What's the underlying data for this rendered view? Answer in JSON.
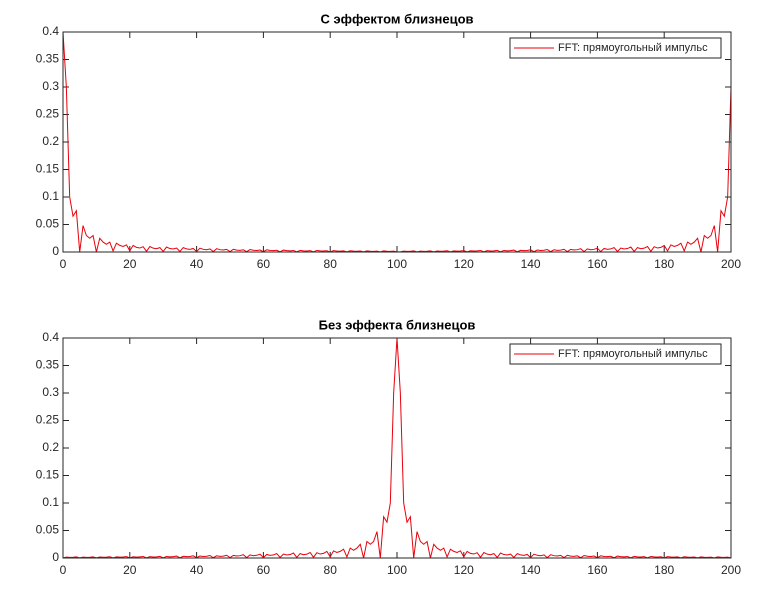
{
  "chart_data": [
    {
      "type": "line",
      "title": "С эффектом близнецов",
      "x": [
        0,
        1,
        2,
        3,
        4,
        5,
        6,
        7,
        8,
        9,
        10,
        11,
        12,
        13,
        14,
        15,
        16,
        17,
        18,
        19,
        20,
        21,
        22,
        23,
        24,
        25,
        26,
        27,
        28,
        29,
        30,
        31,
        32,
        33,
        34,
        35,
        36,
        37,
        38,
        39,
        40,
        41,
        42,
        43,
        44,
        45,
        46,
        47,
        48,
        49,
        50,
        51,
        52,
        53,
        54,
        55,
        56,
        57,
        58,
        59,
        60,
        61,
        62,
        63,
        64,
        65,
        66,
        67,
        68,
        69,
        70,
        71,
        72,
        73,
        74,
        75,
        76,
        77,
        78,
        79,
        80,
        81,
        82,
        83,
        84,
        85,
        86,
        87,
        88,
        89,
        90,
        91,
        92,
        93,
        94,
        95,
        96,
        97,
        98,
        99,
        100,
        101,
        102,
        103,
        104,
        105,
        106,
        107,
        108,
        109,
        110,
        111,
        112,
        113,
        114,
        115,
        116,
        117,
        118,
        119,
        120,
        121,
        122,
        123,
        124,
        125,
        126,
        127,
        128,
        129,
        130,
        131,
        132,
        133,
        134,
        135,
        136,
        137,
        138,
        139,
        140,
        141,
        142,
        143,
        144,
        145,
        146,
        147,
        148,
        149,
        150,
        151,
        152,
        153,
        154,
        155,
        156,
        157,
        158,
        159,
        160,
        161,
        162,
        163,
        164,
        165,
        166,
        167,
        168,
        169,
        170,
        171,
        172,
        173,
        174,
        175,
        176,
        177,
        178,
        179,
        180,
        181,
        182,
        183,
        184,
        185,
        186,
        187,
        188,
        189,
        190,
        191,
        192,
        193,
        194,
        195,
        196,
        197,
        198,
        199,
        200
      ],
      "series": [
        {
          "name": "FFT: прямоугольный импульс",
          "color": "#e8000b",
          "values": [
            0.4,
            0.3,
            0.1,
            0.065,
            0.075,
            0,
            0.048,
            0.03,
            0.025,
            0.03,
            0,
            0.025,
            0.018,
            0.014,
            0.018,
            0.002,
            0.016,
            0.012,
            0.01,
            0.013,
            0.002,
            0.012,
            0.0084,
            0.0072,
            0.0096,
            0.0012,
            0.01,
            0.007,
            0.006,
            0.008,
            0.001,
            0.009,
            0.0063,
            0.0054,
            0.0072,
            0.0009,
            0.008,
            0.0056,
            0.0048,
            0.0064,
            0.0008,
            0.007,
            0.0049,
            0.0042,
            0.0056,
            0.0007,
            0.006,
            0.0042,
            0.0036,
            0.0048,
            0.0006,
            0.005,
            0.0035,
            0.003,
            0.004,
            0.0005,
            0.0045,
            0.0032,
            0.0027,
            0.0036,
            0.0005,
            0.004,
            0.0028,
            0.0024,
            0.0032,
            0.0004,
            0.0035,
            0.0025,
            0.0021,
            0.0028,
            0.0004,
            0.003,
            0.0021,
            0.0018,
            0.0024,
            0.0003,
            0.0028,
            0.002,
            0.0017,
            0.0022,
            0.0003,
            0.0025,
            0.0018,
            0.0015,
            0.002,
            0.0003,
            0.0022,
            0.0015,
            0.0013,
            0.0018,
            0.0002,
            0.002,
            0.0014,
            0.0012,
            0.0016,
            0.0002,
            0.002,
            0.0014,
            0.0012,
            0.0016,
            0.0002,
            0.0002,
            0.0016,
            0.0012,
            0.0014,
            0.002,
            0.0002,
            0.0016,
            0.0012,
            0.0014,
            0.002,
            0.0002,
            0.0018,
            0.0013,
            0.0015,
            0.0022,
            0.0003,
            0.002,
            0.0015,
            0.0018,
            0.0025,
            0.0003,
            0.0022,
            0.0017,
            0.002,
            0.0028,
            0.0003,
            0.0024,
            0.0018,
            0.0021,
            0.003,
            0.0004,
            0.0028,
            0.0021,
            0.0025,
            0.0035,
            0.0004,
            0.0032,
            0.0024,
            0.0028,
            0.004,
            0.0005,
            0.0036,
            0.0027,
            0.0032,
            0.0045,
            0.0005,
            0.004,
            0.003,
            0.0035,
            0.005,
            0.0006,
            0.0048,
            0.0036,
            0.0042,
            0.006,
            0.0007,
            0.0056,
            0.0042,
            0.0049,
            0.007,
            0.0008,
            0.0064,
            0.0048,
            0.0056,
            0.008,
            0.0009,
            0.0072,
            0.0054,
            0.0063,
            0.009,
            0.001,
            0.008,
            0.006,
            0.007,
            0.01,
            0.0012,
            0.0096,
            0.0072,
            0.0084,
            0.012,
            0.002,
            0.013,
            0.01,
            0.012,
            0.016,
            0.002,
            0.018,
            0.014,
            0.018,
            0.025,
            0,
            0.03,
            0.025,
            0.03,
            0.048,
            0,
            0.075,
            0.065,
            0.1,
            0.3
          ]
        }
      ],
      "xlim": [
        0,
        200
      ],
      "xticks": [
        0,
        20,
        40,
        60,
        80,
        100,
        120,
        140,
        160,
        180,
        200
      ],
      "ylim": [
        0,
        0.4
      ],
      "yticks": [
        0,
        0.05,
        0.1,
        0.15,
        0.2,
        0.25,
        0.3,
        0.35,
        0.4
      ],
      "legend": "northeast"
    },
    {
      "type": "line",
      "title": "Без эффекта близнецов",
      "x": [
        0,
        1,
        2,
        3,
        4,
        5,
        6,
        7,
        8,
        9,
        10,
        11,
        12,
        13,
        14,
        15,
        16,
        17,
        18,
        19,
        20,
        21,
        22,
        23,
        24,
        25,
        26,
        27,
        28,
        29,
        30,
        31,
        32,
        33,
        34,
        35,
        36,
        37,
        38,
        39,
        40,
        41,
        42,
        43,
        44,
        45,
        46,
        47,
        48,
        49,
        50,
        51,
        52,
        53,
        54,
        55,
        56,
        57,
        58,
        59,
        60,
        61,
        62,
        63,
        64,
        65,
        66,
        67,
        68,
        69,
        70,
        71,
        72,
        73,
        74,
        75,
        76,
        77,
        78,
        79,
        80,
        81,
        82,
        83,
        84,
        85,
        86,
        87,
        88,
        89,
        90,
        91,
        92,
        93,
        94,
        95,
        96,
        97,
        98,
        99,
        100,
        101,
        102,
        103,
        104,
        105,
        106,
        107,
        108,
        109,
        110,
        111,
        112,
        113,
        114,
        115,
        116,
        117,
        118,
        119,
        120,
        121,
        122,
        123,
        124,
        125,
        126,
        127,
        128,
        129,
        130,
        131,
        132,
        133,
        134,
        135,
        136,
        137,
        138,
        139,
        140,
        141,
        142,
        143,
        144,
        145,
        146,
        147,
        148,
        149,
        150,
        151,
        152,
        153,
        154,
        155,
        156,
        157,
        158,
        159,
        160,
        161,
        162,
        163,
        164,
        165,
        166,
        167,
        168,
        169,
        170,
        171,
        172,
        173,
        174,
        175,
        176,
        177,
        178,
        179,
        180,
        181,
        182,
        183,
        184,
        185,
        186,
        187,
        188,
        189,
        190,
        191,
        192,
        193,
        194,
        195,
        196,
        197,
        198,
        199,
        200
      ],
      "series": [
        {
          "name": "FFT: прямоугольный импульс",
          "color": "#e8000b",
          "values": [
            0.0002,
            0.0016,
            0.0012,
            0.0014,
            0.002,
            0.0002,
            0.0016,
            0.0012,
            0.0014,
            0.002,
            0.0002,
            0.0018,
            0.0013,
            0.0015,
            0.0022,
            0.0003,
            0.002,
            0.0015,
            0.0018,
            0.0025,
            0.0003,
            0.0022,
            0.0017,
            0.002,
            0.0028,
            0.0003,
            0.0024,
            0.0018,
            0.0021,
            0.003,
            0.0004,
            0.0028,
            0.0021,
            0.0025,
            0.0035,
            0.0004,
            0.0032,
            0.0024,
            0.0028,
            0.004,
            0.0005,
            0.0036,
            0.0027,
            0.0032,
            0.0045,
            0.0005,
            0.004,
            0.003,
            0.0035,
            0.005,
            0.0006,
            0.0048,
            0.0036,
            0.0042,
            0.006,
            0.0007,
            0.0056,
            0.0042,
            0.0049,
            0.007,
            0.0008,
            0.0064,
            0.0048,
            0.0056,
            0.008,
            0.0009,
            0.0072,
            0.0054,
            0.0063,
            0.009,
            0.001,
            0.008,
            0.006,
            0.007,
            0.01,
            0.0012,
            0.0096,
            0.0072,
            0.0084,
            0.012,
            0.002,
            0.013,
            0.01,
            0.012,
            0.016,
            0.002,
            0.018,
            0.014,
            0.018,
            0.025,
            0,
            0.03,
            0.025,
            0.03,
            0.048,
            0,
            0.075,
            0.065,
            0.1,
            0.3,
            0.4,
            0.3,
            0.1,
            0.065,
            0.075,
            0,
            0.048,
            0.03,
            0.025,
            0.03,
            0,
            0.025,
            0.018,
            0.014,
            0.018,
            0.002,
            0.016,
            0.012,
            0.01,
            0.013,
            0.002,
            0.012,
            0.0084,
            0.0072,
            0.0096,
            0.0012,
            0.01,
            0.007,
            0.006,
            0.008,
            0.001,
            0.009,
            0.0063,
            0.0054,
            0.0072,
            0.0009,
            0.008,
            0.0056,
            0.0048,
            0.0064,
            0.0008,
            0.007,
            0.0049,
            0.0042,
            0.0056,
            0.0007,
            0.006,
            0.0042,
            0.0036,
            0.0048,
            0.0006,
            0.005,
            0.0035,
            0.003,
            0.004,
            0.0005,
            0.0045,
            0.0032,
            0.0027,
            0.0036,
            0.0005,
            0.004,
            0.0028,
            0.0024,
            0.0032,
            0.0004,
            0.0035,
            0.0025,
            0.0021,
            0.0028,
            0.0004,
            0.003,
            0.0021,
            0.0018,
            0.0024,
            0.0003,
            0.0028,
            0.002,
            0.0017,
            0.0022,
            0.0003,
            0.0025,
            0.0018,
            0.0015,
            0.002,
            0.0003,
            0.0022,
            0.0015,
            0.0013,
            0.0018,
            0.0002,
            0.002,
            0.0014,
            0.0012,
            0.0016,
            0.0002,
            0.002,
            0.0014,
            0.0012,
            0.0016,
            0.0002
          ]
        }
      ],
      "xlim": [
        0,
        200
      ],
      "xticks": [
        0,
        20,
        40,
        60,
        80,
        100,
        120,
        140,
        160,
        180,
        200
      ],
      "ylim": [
        0,
        0.4
      ],
      "yticks": [
        0,
        0.05,
        0.1,
        0.15,
        0.2,
        0.25,
        0.3,
        0.35,
        0.4
      ],
      "legend": "northeast"
    }
  ]
}
